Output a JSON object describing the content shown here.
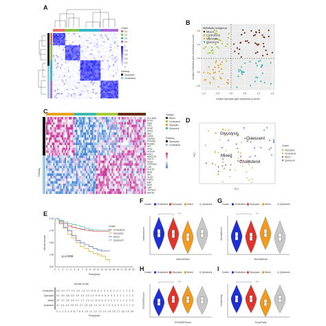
{
  "panels": {
    "A": "A",
    "B": "B",
    "C": "C",
    "D": "D",
    "E": "E",
    "F": "F",
    "G": "G",
    "H": "H",
    "I": "I"
  },
  "panel_a": {
    "legend_title_cluster": "Cluster",
    "clusters": [
      "C1",
      "C2",
      "C3",
      "C4"
    ],
    "cluster_colors": [
      "#e8706b",
      "#8bc34a",
      "#35b6c8",
      "#a66bd6"
    ],
    "legend_title_pathway": "Pathway",
    "pathways": [
      "Glycolysis",
      "Cholesterol"
    ],
    "pathway_colors": [
      "#111111",
      "#9ecae1"
    ],
    "scale_ticks": [
      "1",
      "0.8",
      "0.6",
      "0.4",
      "0.2",
      "0"
    ],
    "block_sizes": [
      0.18,
      0.22,
      0.32,
      0.28
    ]
  },
  "panel_b": {
    "legend_title": "Metabolic subgroup",
    "groups": [
      "Mixed",
      "Cholesterol",
      "Glycolytic",
      "Quiescent"
    ],
    "group_colors": [
      "#6b2b0f",
      "#a8c93c",
      "#e6a321",
      "#3fb8b0"
    ],
    "xlabel": "median Glycolysis gene expression (z-score)",
    "ylabel": "median Cholesterol gene expression (z-score)",
    "x_ticks": [
      "-1.0",
      "-0.5",
      "0.0",
      "0.5",
      "1.0",
      "1.5"
    ],
    "y_ticks": [
      "1.5",
      "1.0",
      "0.5",
      "0.0",
      "-0.5"
    ]
  },
  "panel_c": {
    "legend_title_subtype": "Subtype",
    "subtypes": [
      "Mixed",
      "Cholesterol",
      "Glycolytic",
      "Quiescent"
    ],
    "subtype_colors": [
      "#6b2b0f",
      "#a8c93c",
      "#e6a321",
      "#3fb8b0"
    ],
    "legend_title_pathway": "Pathway",
    "pathways": [
      "Glycolysis",
      "Cholesterol"
    ],
    "pathway_colors": [
      "#111111",
      "#9ecae1"
    ],
    "genes_top": [
      "SLC16A1",
      "PGK1",
      "PKM",
      "TPI1",
      "PFKP",
      "ENO1",
      "HK2",
      "LDHA",
      "GAPDH",
      "PFKFB4",
      "PGAM1",
      "GPI",
      "PFKL",
      "ALDOA",
      "PDK1"
    ],
    "genes_bottom": [
      "HMGCS1",
      "FDFT1",
      "SQLE",
      "CYP51A1",
      "LSS",
      "DHCR7",
      "MVD",
      "IDI1",
      "SC5D",
      "FDPS",
      "EBP",
      "MVK",
      "LBR",
      "TM7SF2",
      "NSDHL"
    ],
    "row_label": "Pathway"
  },
  "panel_d": {
    "xlabel": "PC1",
    "ylabel": "PC2",
    "annotations": [
      "Glycolysis",
      "Quiescent",
      "Mixed",
      "Cholesterol"
    ],
    "legend_title": "Cluster",
    "groups": [
      "Glycolysis",
      "Cholesterol",
      "Mixed",
      "Quiescent"
    ],
    "group_colors": [
      "#e6a321",
      "#a8c93c",
      "#c63a2e",
      "#4a64c8"
    ]
  },
  "panel_e": {
    "ylabel": "Overall survival",
    "xlabel": "Time(years)",
    "pvalue": "p=0.006",
    "legend_title": "Cluster",
    "groups": [
      "Cholesterol",
      "Glycolysis",
      "Mixed",
      "Quiescent"
    ],
    "group_colors": [
      "#c63a2e",
      "#e6a321",
      "#4a64c8",
      "#3fb8b0"
    ],
    "y_ticks": [
      "1.00",
      "0.75",
      "0.50",
      "0.25",
      "0.00"
    ],
    "x_ticks": [
      "0",
      "1",
      "2",
      "3",
      "4",
      "5",
      "6",
      "7",
      "8",
      "9",
      "10",
      "11",
      "12",
      "13",
      "14",
      "15",
      "16",
      "17",
      "18",
      "19",
      "20"
    ],
    "risk_title": "Number at risk",
    "risk_rows": [
      {
        "name": "Cholesterol",
        "color": "#c63a2e",
        "values": "35 32 27 23 19 14 11 9 6 5 4 4 3 3 2 2 1 1 1 0 0"
      },
      {
        "name": "Glycolysis",
        "color": "#e6a321",
        "values": "51 45 38 30 25 20 15 12 9 8 6 5 4 3 3 2 2 1 1 1 0"
      },
      {
        "name": "Mixed",
        "color": "#4a64c8",
        "values": "42 37 30 26 21 17 13 11 8 6 5 4 3 2 2 1 1 1 0 0 0"
      },
      {
        "name": "Quiescent",
        "color": "#3fb8b0",
        "values": "47 44 40 36 31 27 22 18 14 11 9 7 5 4 3 3 2 1 1 1 0"
      }
    ]
  },
  "violins": {
    "legend_title": "Cluster",
    "groups": [
      "Cholesterol",
      "Glycolysis",
      "Mixed",
      "Quiescent"
    ],
    "group_colors": [
      "#1f2fd6",
      "#e0342a",
      "#f19a1e",
      "#c8c8c8"
    ],
    "F": {
      "ylabel": "ImmuneScore",
      "xlabel": "ImmuneScore",
      "sig": "***"
    },
    "G": {
      "ylabel": "StromalScore",
      "xlabel": "StromalScore",
      "sig": "**"
    },
    "H": {
      "ylabel": "ESTIMATEScore",
      "xlabel": "ESTIMATEScore",
      "sig": "***"
    },
    "I": {
      "ylabel": "TumorPurity",
      "xlabel": "TumorPurity",
      "sig": "***"
    }
  }
}
